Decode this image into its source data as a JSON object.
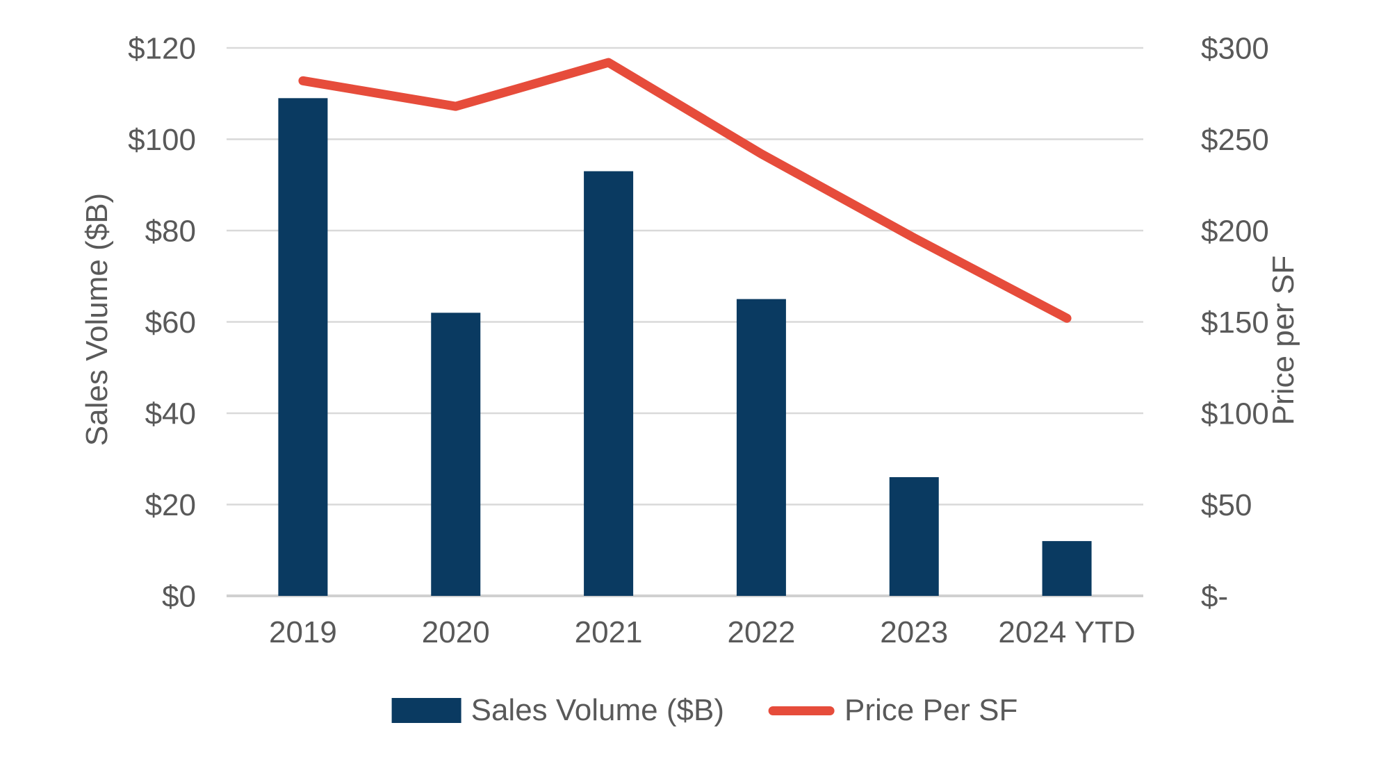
{
  "chart_data": {
    "type": "combo-bar-line",
    "categories": [
      "2019",
      "2020",
      "2021",
      "2022",
      "2023",
      "2024 YTD"
    ],
    "series": [
      {
        "name": "Sales Volume ($B)",
        "type": "bar",
        "axis": "left",
        "color": "#0a3a61",
        "values": [
          109,
          62,
          93,
          65,
          26,
          12
        ]
      },
      {
        "name": "Price Per SF",
        "type": "line",
        "axis": "right",
        "color": "#e64c3b",
        "values": [
          282,
          268,
          292,
          242,
          196,
          152
        ]
      }
    ],
    "left_axis": {
      "title": "Sales Volume ($B)",
      "min": 0,
      "max": 120,
      "ticks": [
        0,
        20,
        40,
        60,
        80,
        100,
        120
      ],
      "tick_labels": [
        "$0",
        "$20",
        "$40",
        "$60",
        "$80",
        "$100",
        "$120"
      ]
    },
    "right_axis": {
      "title": "Price per SF",
      "min": 0,
      "max": 300,
      "ticks": [
        0,
        50,
        100,
        150,
        200,
        250,
        300
      ],
      "tick_labels": [
        "$-",
        "$50",
        "$100",
        "$150",
        "$200",
        "$250",
        "$300"
      ]
    },
    "grid": true,
    "legend_position": "bottom",
    "background": "#ffffff",
    "gridline_color": "#d9d9d9",
    "axis_line_color": "#d0d0d0",
    "text_color": "#595959"
  }
}
